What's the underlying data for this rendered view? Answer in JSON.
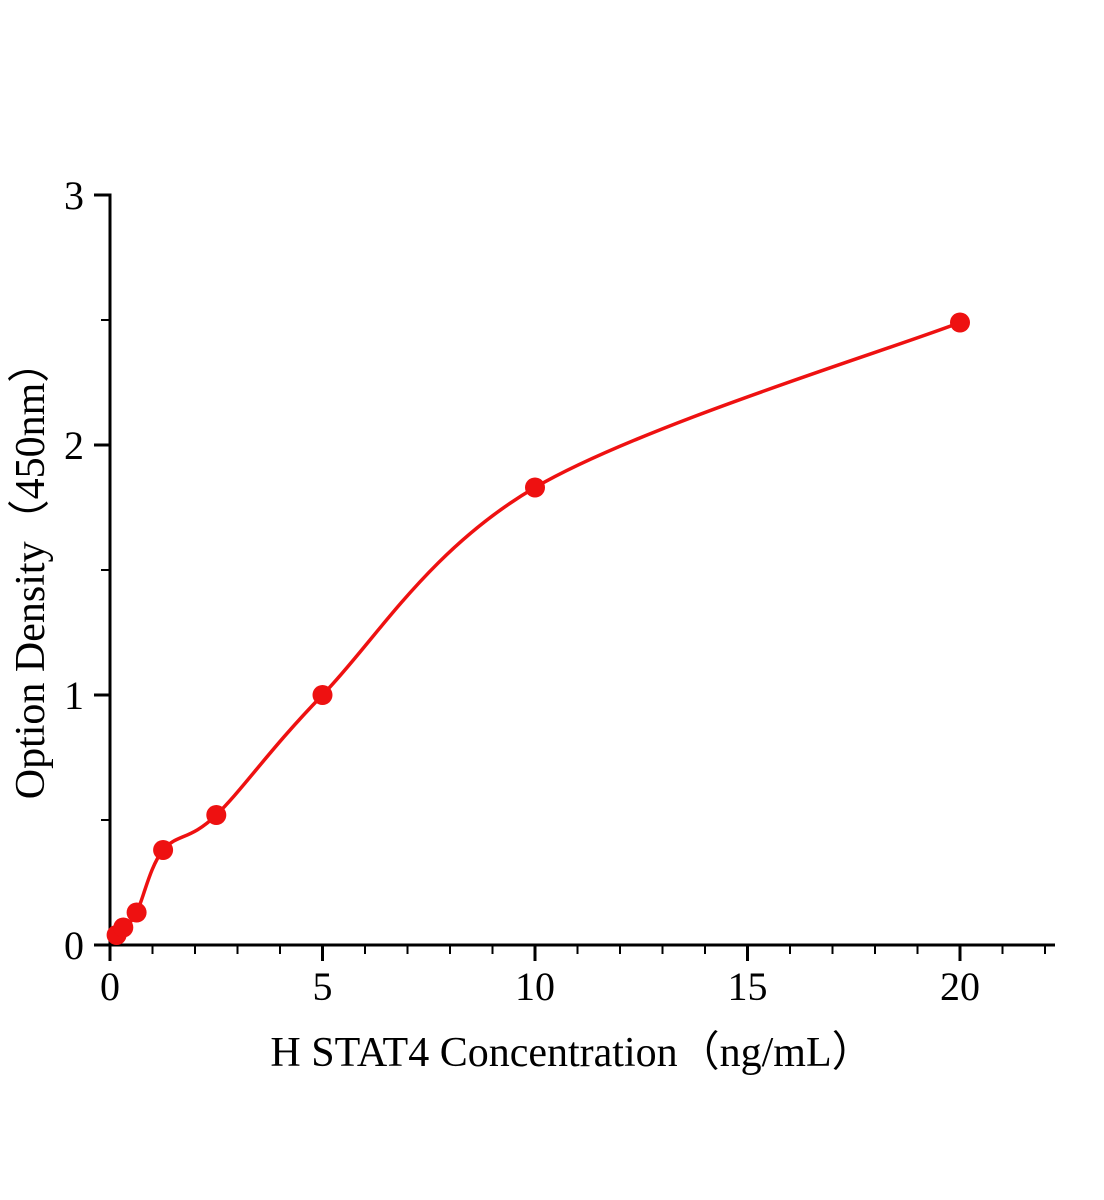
{
  "chart_data": {
    "type": "scatter",
    "title": "",
    "xlabel": "H STAT4 Concentration（ng/mL）",
    "ylabel": "Option Density（450nm）",
    "x": [
      0.156,
      0.313,
      0.625,
      1.25,
      2.5,
      5,
      10,
      20
    ],
    "y": [
      0.04,
      0.07,
      0.13,
      0.38,
      0.52,
      1.0,
      1.83,
      2.49
    ],
    "xlim": [
      0,
      22.2
    ],
    "ylim": [
      0,
      3
    ],
    "x_major_ticks": [
      0,
      5,
      10,
      15,
      20
    ],
    "x_minor_step": 1,
    "y_major_ticks": [
      0,
      1,
      2,
      3
    ],
    "y_minor_step": 0.5,
    "grid": "off",
    "legend": "none",
    "curve_color": "#ee1111",
    "point_color": "#ee1111",
    "axis_color": "#000000",
    "point_radius": 10
  }
}
